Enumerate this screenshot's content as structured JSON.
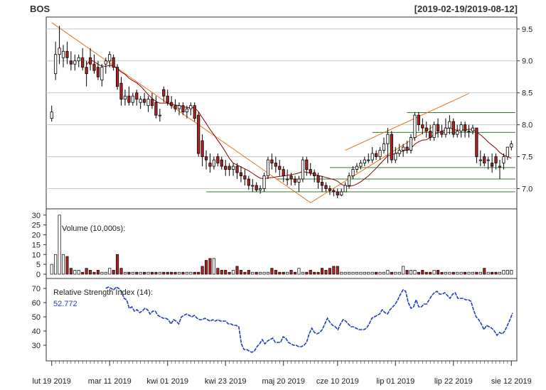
{
  "header": {
    "symbol": "BOS",
    "date_range": "[2019-02-19/2019-08-12]"
  },
  "colors": {
    "up_fill": "#ffffff",
    "down_fill": "#b22222",
    "candle_border": "#000000",
    "trendline": "#e8751a",
    "support": "#2e7d32",
    "sma": "#8b0000",
    "rsi": "#1f3fbf",
    "grid": "#c8c8c8",
    "label_blue": "#1f3fbf"
  },
  "chart_data": [
    {
      "type": "candlestick",
      "panel": "price",
      "ylim": [
        6.75,
        9.62
      ],
      "yticks": [
        "7.0",
        "7.5",
        "8.0",
        "8.5",
        "9.0",
        "9.5"
      ],
      "grid": true,
      "series": {
        "open": [
          8.1,
          8.8,
          9.1,
          9.05,
          9.15,
          9.0,
          8.95,
          9.0,
          9.05,
          8.9,
          9.05,
          8.95,
          8.9,
          8.7,
          8.95,
          9.0,
          9.05,
          8.9,
          8.65,
          8.4,
          8.45,
          8.35,
          8.5,
          8.35,
          8.4,
          8.3,
          8.4,
          8.35,
          8.15,
          8.55,
          8.45,
          8.35,
          8.3,
          8.25,
          8.3,
          8.2,
          8.25,
          8.3,
          8.15,
          7.75,
          7.5,
          7.4,
          7.35,
          7.5,
          7.45,
          7.35,
          7.35,
          7.3,
          7.35,
          7.25,
          7.2,
          7.15,
          7.05,
          7.05,
          6.98,
          7.0,
          7.2,
          7.45,
          7.4,
          7.35,
          7.3,
          7.15,
          7.2,
          7.15,
          7.1,
          7.15,
          7.45,
          7.3,
          7.25,
          7.2,
          7.1,
          7.05,
          7.0,
          6.97,
          6.95,
          6.9,
          6.95,
          7.05,
          7.2,
          7.3,
          7.35,
          7.4,
          7.45,
          7.45,
          7.55,
          7.5,
          7.6,
          7.7,
          7.85,
          7.45,
          7.55,
          7.6,
          7.65,
          7.6,
          7.8,
          8.15,
          8.0,
          7.95,
          7.9,
          7.8,
          8.0,
          7.9,
          7.85,
          7.95,
          8.05,
          7.85,
          7.9,
          8.0,
          7.9,
          7.9,
          7.95,
          7.45,
          7.5,
          7.45,
          7.4,
          7.5,
          7.35,
          7.4,
          7.5,
          7.65
        ],
        "high": [
          8.3,
          9.3,
          9.55,
          9.25,
          9.3,
          9.15,
          9.1,
          9.1,
          9.2,
          9.0,
          9.2,
          9.1,
          9.0,
          8.95,
          9.05,
          9.15,
          9.1,
          8.95,
          8.75,
          8.55,
          8.6,
          8.5,
          8.55,
          8.45,
          8.5,
          8.45,
          8.5,
          8.45,
          8.25,
          8.6,
          8.55,
          8.45,
          8.4,
          8.35,
          8.35,
          8.3,
          8.35,
          8.35,
          8.2,
          7.85,
          7.6,
          7.55,
          7.5,
          7.55,
          7.5,
          7.45,
          7.4,
          7.4,
          7.4,
          7.35,
          7.3,
          7.2,
          7.15,
          7.1,
          7.05,
          7.25,
          7.5,
          7.55,
          7.5,
          7.45,
          7.35,
          7.3,
          7.25,
          7.2,
          7.2,
          7.5,
          7.5,
          7.4,
          7.3,
          7.25,
          7.2,
          7.1,
          7.05,
          7.0,
          7.0,
          7.0,
          7.1,
          7.25,
          7.35,
          7.4,
          7.45,
          7.5,
          7.55,
          7.65,
          7.6,
          7.65,
          7.8,
          7.95,
          7.9,
          7.65,
          7.7,
          7.7,
          7.75,
          7.85,
          8.2,
          8.2,
          8.1,
          8.05,
          8.0,
          8.05,
          8.1,
          8.0,
          8.1,
          8.15,
          8.1,
          8.0,
          8.05,
          8.05,
          8.0,
          8.0,
          7.95,
          7.6,
          7.55,
          7.5,
          7.55,
          7.55,
          7.45,
          7.55,
          7.65,
          7.75
        ],
        "low": [
          8.05,
          8.7,
          8.95,
          8.9,
          8.95,
          8.85,
          8.85,
          8.9,
          8.85,
          8.6,
          8.85,
          8.8,
          8.7,
          8.6,
          8.8,
          8.9,
          8.85,
          8.55,
          8.3,
          8.3,
          8.3,
          8.3,
          8.3,
          8.25,
          8.3,
          8.2,
          8.25,
          8.1,
          8.05,
          8.35,
          8.3,
          8.25,
          8.2,
          8.15,
          8.15,
          8.1,
          8.15,
          8.05,
          7.5,
          7.35,
          7.3,
          7.25,
          7.3,
          7.35,
          7.3,
          7.2,
          7.2,
          7.2,
          7.15,
          7.1,
          7.05,
          6.98,
          6.95,
          6.95,
          6.92,
          6.95,
          7.15,
          7.3,
          7.25,
          7.2,
          7.1,
          7.05,
          7.05,
          7.05,
          6.95,
          7.1,
          7.2,
          7.2,
          7.1,
          7.0,
          6.95,
          6.95,
          6.9,
          6.88,
          6.85,
          6.88,
          6.95,
          7.0,
          7.15,
          7.25,
          7.3,
          7.35,
          7.4,
          7.4,
          7.45,
          7.45,
          7.55,
          7.4,
          7.4,
          7.4,
          7.5,
          7.5,
          7.55,
          7.55,
          7.75,
          7.9,
          7.85,
          7.8,
          7.75,
          7.75,
          7.8,
          7.8,
          7.8,
          7.85,
          7.8,
          7.8,
          7.8,
          7.8,
          7.8,
          7.85,
          7.4,
          7.35,
          7.35,
          7.3,
          7.25,
          7.3,
          7.15,
          7.3,
          7.45,
          7.6
        ],
        "close": [
          8.2,
          9.1,
          9.2,
          9.15,
          9.05,
          8.95,
          9.0,
          9.05,
          8.9,
          8.8,
          8.95,
          8.85,
          8.75,
          8.9,
          9.0,
          9.1,
          8.9,
          8.6,
          8.4,
          8.45,
          8.35,
          8.45,
          8.4,
          8.4,
          8.35,
          8.4,
          8.3,
          8.15,
          8.15,
          8.45,
          8.35,
          8.3,
          8.25,
          8.3,
          8.2,
          8.25,
          8.3,
          8.1,
          7.55,
          7.5,
          7.45,
          7.35,
          7.45,
          7.4,
          7.35,
          7.3,
          7.3,
          7.35,
          7.25,
          7.2,
          7.15,
          7.05,
          7.05,
          6.98,
          7.0,
          7.2,
          7.45,
          7.4,
          7.35,
          7.3,
          7.2,
          7.15,
          7.15,
          7.1,
          7.15,
          7.45,
          7.3,
          7.25,
          7.2,
          7.1,
          7.05,
          7.0,
          6.97,
          6.95,
          6.9,
          6.95,
          7.05,
          7.2,
          7.3,
          7.35,
          7.4,
          7.45,
          7.45,
          7.55,
          7.5,
          7.6,
          7.7,
          7.85,
          7.45,
          7.55,
          7.6,
          7.65,
          7.6,
          7.8,
          8.15,
          8.0,
          7.95,
          7.9,
          7.8,
          8.0,
          7.9,
          7.85,
          7.95,
          8.05,
          7.85,
          7.9,
          8.0,
          7.9,
          7.9,
          7.95,
          7.5,
          7.45,
          7.4,
          7.45,
          7.35,
          7.4,
          7.35,
          7.5,
          7.65,
          7.7
        ]
      }
    },
    {
      "type": "bar",
      "panel": "volume",
      "label": "Volume (10,000s):",
      "ylim": [
        0,
        31
      ],
      "yticks": [
        "0",
        "5",
        "10",
        "15",
        "20",
        "25",
        "30"
      ],
      "values": [
        5,
        10,
        30,
        10,
        9,
        3,
        2,
        2,
        1,
        3,
        2,
        1,
        2,
        1,
        1,
        3,
        2,
        10,
        3,
        1,
        1,
        1,
        1,
        1,
        1,
        1,
        1,
        1,
        1,
        1,
        1,
        1,
        1,
        1,
        1,
        1,
        1,
        1,
        1,
        4,
        7,
        8,
        8,
        3,
        2,
        2,
        1,
        2,
        4,
        2,
        1,
        2,
        1,
        1,
        1,
        1,
        1,
        3,
        2,
        1,
        1,
        1,
        2,
        1,
        3,
        1,
        1,
        2,
        1,
        1,
        3,
        2,
        3,
        4,
        4,
        1,
        1,
        1,
        1,
        1,
        1,
        1,
        1,
        1,
        1,
        1,
        1,
        2,
        1,
        1,
        1,
        4,
        2,
        2,
        2,
        1,
        2,
        1,
        1,
        2,
        2,
        1,
        1,
        1,
        1,
        1,
        1,
        1,
        1,
        1,
        1,
        1,
        3,
        1,
        1,
        1,
        1,
        2,
        2,
        2
      ]
    },
    {
      "type": "line",
      "panel": "rsi",
      "label": "Relative Strength Index (14):",
      "last_value": "52.772",
      "ylim": [
        22,
        74
      ],
      "yticks": [
        "30",
        "40",
        "50",
        "60",
        "70"
      ],
      "start_index": 14,
      "values": [
        70,
        71,
        70,
        69,
        71,
        70,
        68,
        63,
        62,
        56,
        57,
        54,
        55,
        53,
        54,
        56,
        55,
        52,
        54,
        54,
        51,
        50,
        49,
        49,
        48,
        45,
        48,
        47,
        45,
        50,
        51,
        52,
        51,
        50,
        51,
        49,
        48,
        48,
        49,
        48,
        47,
        48,
        47,
        48,
        47,
        47,
        47,
        45,
        45,
        44,
        44,
        43,
        31,
        27,
        27,
        26,
        25,
        26,
        29,
        31,
        34,
        31,
        33,
        34,
        35,
        32,
        32,
        32,
        36,
        35,
        32,
        31,
        30,
        30,
        29,
        29,
        30,
        32,
        38,
        42,
        39,
        38,
        39,
        41,
        45,
        49,
        46,
        44,
        43,
        41,
        45,
        48,
        47,
        45,
        43,
        43,
        42,
        41,
        41,
        41,
        42,
        45,
        49,
        50,
        51,
        52,
        55,
        53,
        52,
        55,
        57,
        59,
        62,
        66,
        69,
        68,
        60,
        56,
        57,
        62,
        57,
        57,
        59,
        59,
        62,
        65,
        67,
        68,
        66,
        66,
        67,
        65,
        63,
        66,
        67,
        63,
        63,
        63,
        62,
        62,
        61,
        55,
        50,
        48,
        45,
        41,
        44,
        43,
        42,
        40,
        37,
        39,
        38,
        40,
        44,
        48,
        52.772
      ]
    }
  ],
  "x_axis": {
    "tick_labels": [
      "lut 19 2019",
      "mar 11 2019",
      "kwi 01 2019",
      "kwi 23 2019",
      "maj 20 2019",
      "cze 10 2019",
      "lip 01 2019",
      "lip 22 2019",
      "sie 12 2019"
    ]
  },
  "overlays": {
    "sma_label": "",
    "trendlines": [
      {
        "from": [
          0,
          9.6
        ],
        "to": [
          67,
          6.78
        ]
      },
      {
        "from": [
          67,
          6.78
        ],
        "to": [
          100,
          8.02
        ]
      },
      {
        "from": [
          76,
          7.6
        ],
        "to": [
          108,
          8.49
        ]
      }
    ],
    "support_lines": [
      {
        "from": [
          40,
          6.95
        ],
        "to": [
          120,
          6.95
        ]
      },
      {
        "from": [
          58,
          7.15
        ],
        "to": [
          120,
          7.15
        ]
      },
      {
        "from": [
          72,
          7.33
        ],
        "to": [
          120,
          7.33
        ]
      },
      {
        "from": [
          83,
          7.88
        ],
        "to": [
          120,
          7.88
        ]
      },
      {
        "from": [
          92,
          8.19
        ],
        "to": [
          120,
          8.19
        ]
      }
    ]
  }
}
